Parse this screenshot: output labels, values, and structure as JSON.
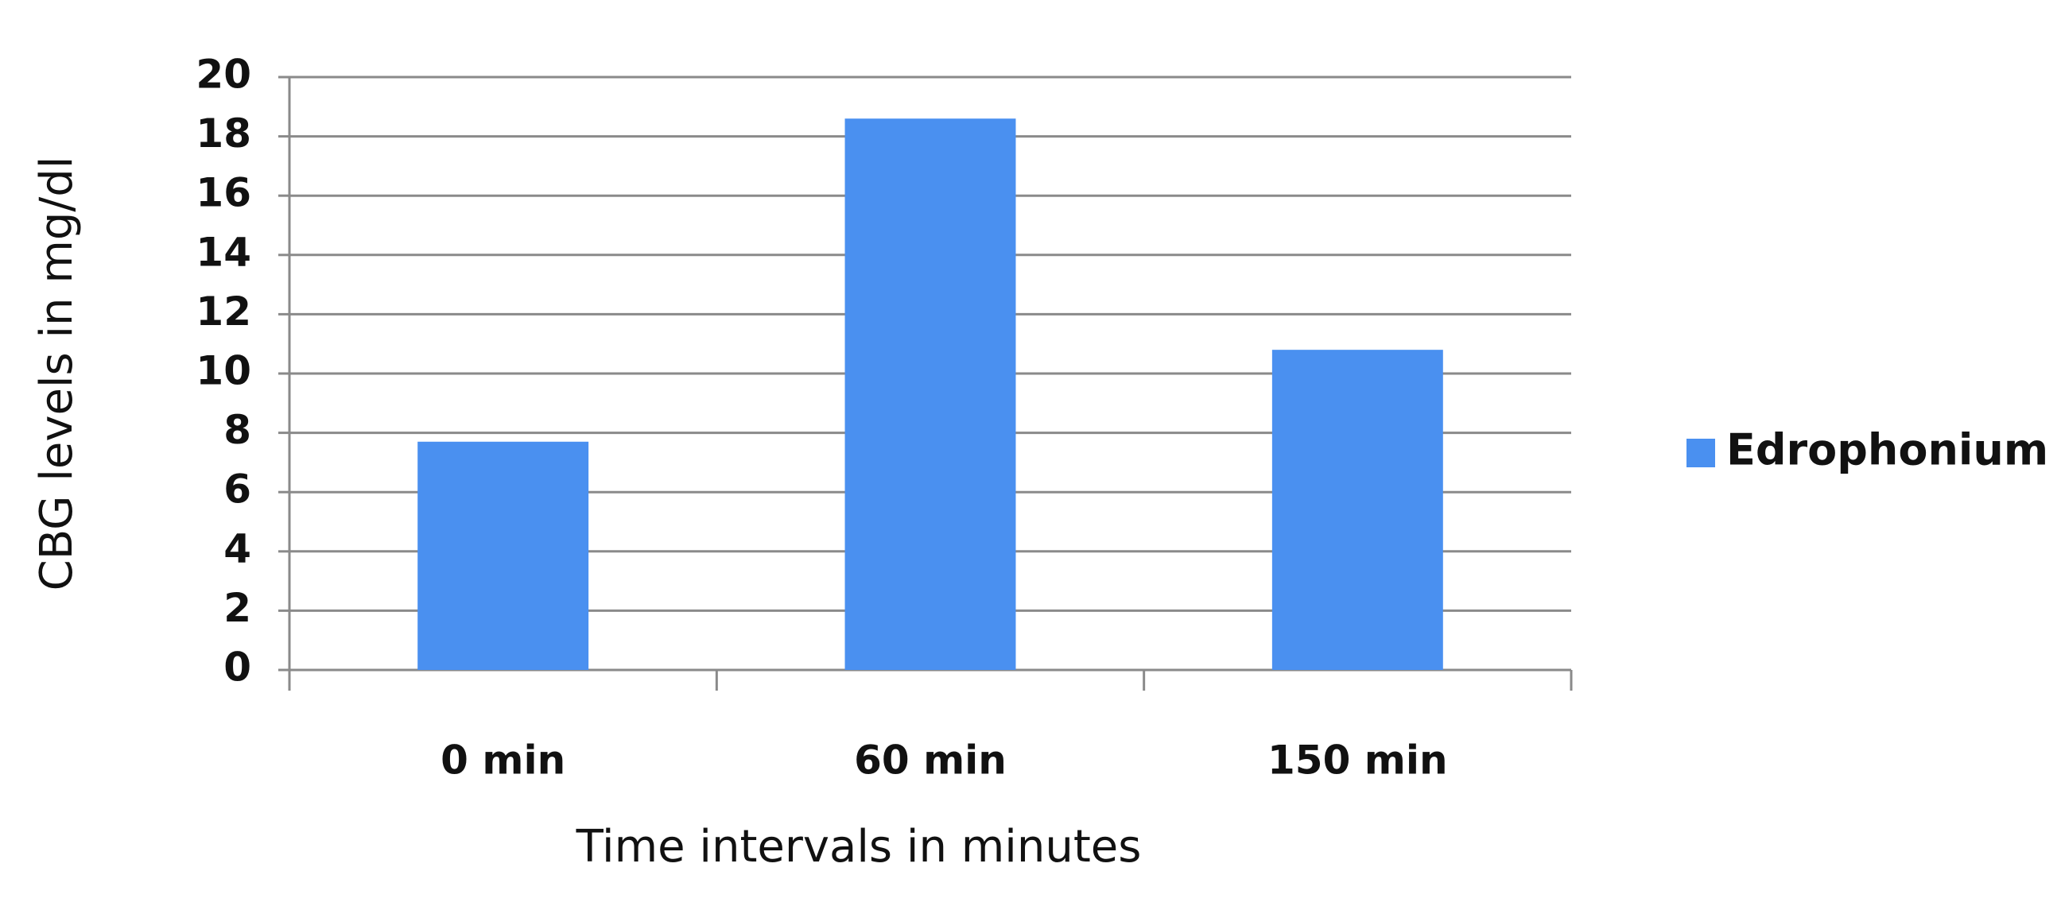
{
  "chart_data": {
    "type": "bar",
    "categories": [
      "0 min",
      "60 min",
      "150 min"
    ],
    "series": [
      {
        "name": "Edrophonium",
        "color": "#4a90f0",
        "values": [
          7.7,
          18.6,
          10.8
        ]
      }
    ],
    "xlabel": "Time intervals in minutes",
    "ylabel": "CBG levels in mg/dl",
    "ylim": [
      0,
      20
    ],
    "yticks": [
      0,
      2,
      4,
      6,
      8,
      10,
      12,
      14,
      16,
      18,
      20
    ],
    "grid": true,
    "legend": "right"
  }
}
